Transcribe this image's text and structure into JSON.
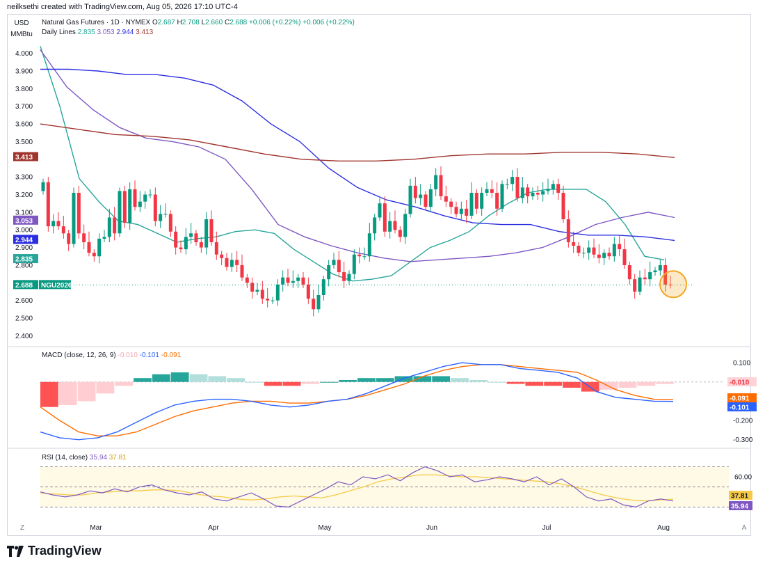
{
  "watermark": "neilksethi created with TradingView.com, Aug 05, 2026 17:10 UTC-4",
  "currency": "USD",
  "unit": "MMBtu",
  "legend": {
    "symbol_name": "Natural Gas Futures · 1D · NYMEX",
    "o_label": "O",
    "o_value": "2.687",
    "h_label": "H",
    "h_value": "2.708",
    "l_label": "L",
    "l_value": "2.660",
    "c_label": "C",
    "c_value": "2.688",
    "change": "+0.006 (+0.22%)",
    "change2": "+0.006 (+0.22%)",
    "lines_label": "Daily Lines",
    "ma_values": [
      "2.835",
      "3.053",
      "2.944",
      "3.413"
    ]
  },
  "macd_legend": {
    "label": "MACD (close, 12, 26, 9)",
    "hist": "-0.010",
    "macd": "-0.101",
    "signal": "-0.091"
  },
  "rsi_legend": {
    "label": "RSI (14, close)",
    "rsi": "35.94",
    "ma": "37.81"
  },
  "footer_brand": "TradingView",
  "x_axis_edge": {
    "left": "Z",
    "right": "A"
  },
  "colors": {
    "up": "#089981",
    "down": "#f23645",
    "ma20": "#26a69a",
    "ma50": "#7e57c2",
    "ma100": "#2a2ee0",
    "ma200": "#a0352e",
    "macd": "#2962ff",
    "signal": "#ff6d00",
    "rsi": "#7e57c2",
    "rsi_ma": "#f7c948",
    "highlight": "#f5a623"
  },
  "chart_data": [
    {
      "type": "candlestick",
      "title": "Natural Gas Futures · 1D · NYMEX",
      "y_ticks": [
        "4.000",
        "3.900",
        "3.800",
        "3.700",
        "3.600",
        "3.500",
        "3.300",
        "3.200",
        "3.100",
        "3.000",
        "2.900",
        "2.800",
        "2.600",
        "2.500",
        "2.400"
      ],
      "ylim": [
        2.35,
        4.05
      ],
      "x_ticks": [
        "Mar",
        "Apr",
        "May",
        "Jun",
        "Jul",
        "Aug"
      ],
      "price_labels": [
        {
          "value": "3.413",
          "color": "#a0352e"
        },
        {
          "value": "3.053",
          "color": "#7e57c2"
        },
        {
          "value": "2.944",
          "color": "#2a2ee0"
        },
        {
          "value": "2.835",
          "color": "#26a69a"
        },
        {
          "value": "2.688",
          "color": "#089981",
          "tag": "NGU2026"
        }
      ],
      "last_price": 2.688,
      "closes": [
        3.27,
        3.02,
        3.05,
        3.02,
        2.98,
        2.92,
        3.21,
        2.98,
        2.93,
        2.87,
        2.85,
        2.95,
        2.96,
        3.07,
        2.98,
        3.22,
        3.04,
        3.23,
        3.13,
        3.16,
        3.2,
        3.2,
        3.05,
        3.09,
        3.09,
        2.99,
        2.9,
        2.89,
        2.96,
        2.98,
        2.93,
        2.9,
        3.06,
        2.93,
        2.86,
        2.84,
        2.79,
        2.83,
        2.8,
        2.73,
        2.7,
        2.65,
        2.66,
        2.61,
        2.6,
        2.6,
        2.69,
        2.73,
        2.7,
        2.71,
        2.73,
        2.69,
        2.61,
        2.55,
        2.63,
        2.72,
        2.8,
        2.83,
        2.76,
        2.71,
        2.75,
        2.86,
        2.85,
        2.85,
        2.98,
        3.07,
        3.15,
        2.99,
        3.05,
        3.0,
        2.96,
        3.09,
        3.25,
        3.18,
        3.2,
        3.13,
        3.23,
        3.31,
        3.19,
        3.16,
        3.13,
        3.09,
        3.12,
        3.08,
        3.21,
        3.12,
        3.21,
        3.23,
        3.21,
        3.12,
        3.26,
        3.26,
        3.3,
        3.18,
        3.24,
        3.19,
        3.21,
        3.2,
        3.22,
        3.23,
        3.26,
        3.21,
        3.06,
        2.93,
        2.91,
        2.87,
        2.87,
        2.9,
        2.86,
        2.84,
        2.87,
        2.85,
        2.92,
        2.89,
        2.8,
        2.72,
        2.65,
        2.73,
        2.72,
        2.76,
        2.77,
        2.8,
        2.69,
        2.688
      ],
      "ma_series": [
        {
          "name": "2.835",
          "values": [
            4.04,
            3.7,
            3.29,
            3.16,
            3.05,
            3.03,
            2.98,
            2.93,
            2.95,
            2.96,
            2.99,
            3.0,
            2.98,
            2.89,
            2.82,
            2.75,
            2.71,
            2.72,
            2.74,
            2.82,
            2.9,
            2.94,
            2.99,
            3.08,
            3.15,
            3.21,
            3.23,
            3.23,
            3.23,
            3.16,
            3.03,
            2.85,
            2.83
          ]
        },
        {
          "name": "3.053",
          "values": [
            4.02,
            3.81,
            3.68,
            3.58,
            3.52,
            3.5,
            3.47,
            3.4,
            3.23,
            3.03,
            2.96,
            2.91,
            2.87,
            2.84,
            2.82,
            2.83,
            2.84,
            2.85,
            2.87,
            2.9,
            2.96,
            3.03,
            3.07,
            3.1,
            3.07
          ]
        },
        {
          "name": "2.944",
          "values": [
            3.91,
            3.91,
            3.9,
            3.88,
            3.88,
            3.86,
            3.82,
            3.73,
            3.6,
            3.5,
            3.35,
            3.24,
            3.17,
            3.13,
            3.08,
            3.04,
            3.03,
            3.03,
            2.99,
            2.97,
            2.97,
            2.96,
            2.94
          ]
        },
        {
          "name": "3.413",
          "values": [
            3.6,
            3.57,
            3.54,
            3.53,
            3.51,
            3.47,
            3.43,
            3.4,
            3.39,
            3.39,
            3.4,
            3.42,
            3.43,
            3.43,
            3.44,
            3.44,
            3.43,
            3.41
          ]
        }
      ]
    },
    {
      "type": "bar",
      "title": "MACD (close, 12, 26, 9)",
      "y_ticks": [
        "0.100",
        "-0.200",
        "-0.300"
      ],
      "ylim": [
        -0.33,
        0.14
      ],
      "value_labels": [
        {
          "value": "-0.010",
          "color": "#f23645"
        },
        {
          "value": "-0.091",
          "color": "#ff6d00"
        },
        {
          "value": "-0.101",
          "color": "#2962ff"
        }
      ],
      "macd": [
        -0.26,
        -0.29,
        -0.3,
        -0.29,
        -0.26,
        -0.21,
        -0.16,
        -0.12,
        -0.1,
        -0.09,
        -0.09,
        -0.1,
        -0.12,
        -0.13,
        -0.12,
        -0.1,
        -0.09,
        -0.06,
        -0.02,
        0.02,
        0.05,
        0.08,
        0.1,
        0.09,
        0.09,
        0.07,
        0.06,
        0.05,
        0.02,
        -0.05,
        -0.08,
        -0.09,
        -0.1,
        -0.101
      ],
      "signal": [
        -0.13,
        -0.2,
        -0.26,
        -0.28,
        -0.28,
        -0.26,
        -0.22,
        -0.18,
        -0.15,
        -0.13,
        -0.11,
        -0.1,
        -0.1,
        -0.11,
        -0.11,
        -0.1,
        -0.09,
        -0.07,
        -0.04,
        -0.01,
        0.03,
        0.06,
        0.08,
        0.09,
        0.09,
        0.08,
        0.07,
        0.06,
        0.05,
        0.01,
        -0.04,
        -0.07,
        -0.09,
        -0.091
      ],
      "histogram": [
        -0.13,
        -0.12,
        -0.1,
        -0.06,
        -0.02,
        0.02,
        0.04,
        0.05,
        0.04,
        0.03,
        0.02,
        0.0,
        -0.02,
        -0.02,
        -0.01,
        0.0,
        0.01,
        0.02,
        0.02,
        0.03,
        0.03,
        0.03,
        0.02,
        0.01,
        0.0,
        -0.01,
        -0.02,
        -0.02,
        -0.03,
        -0.05,
        -0.04,
        -0.03,
        -0.02,
        -0.01
      ]
    },
    {
      "type": "line",
      "title": "RSI (14, close)",
      "y_ticks": [
        "60.00"
      ],
      "ylim": [
        22,
        80
      ],
      "band": [
        30,
        70
      ],
      "value_labels": [
        {
          "value": "37.81",
          "color": "#f7c948"
        },
        {
          "value": "35.94",
          "color": "#7e57c2"
        }
      ],
      "rsi": [
        45,
        42,
        40,
        42,
        46,
        44,
        48,
        45,
        50,
        52,
        47,
        44,
        42,
        45,
        38,
        36,
        40,
        44,
        38,
        31,
        30,
        36,
        42,
        48,
        55,
        52,
        60,
        58,
        62,
        56,
        64,
        70,
        66,
        60,
        62,
        55,
        57,
        60,
        58,
        55,
        60,
        52,
        58,
        50,
        40,
        36,
        38,
        32,
        30,
        36,
        38,
        35.94
      ],
      "rsi_ma": [
        44,
        43,
        42,
        42,
        44,
        45,
        46,
        46,
        47,
        47,
        46,
        43,
        41,
        40,
        38,
        37,
        38,
        40,
        41,
        40,
        39,
        42,
        46,
        50,
        55,
        58,
        60,
        62,
        62,
        61,
        60,
        60,
        59,
        58,
        57,
        56,
        55,
        53,
        50,
        46,
        42,
        39,
        37,
        36,
        37,
        37.81
      ]
    }
  ]
}
